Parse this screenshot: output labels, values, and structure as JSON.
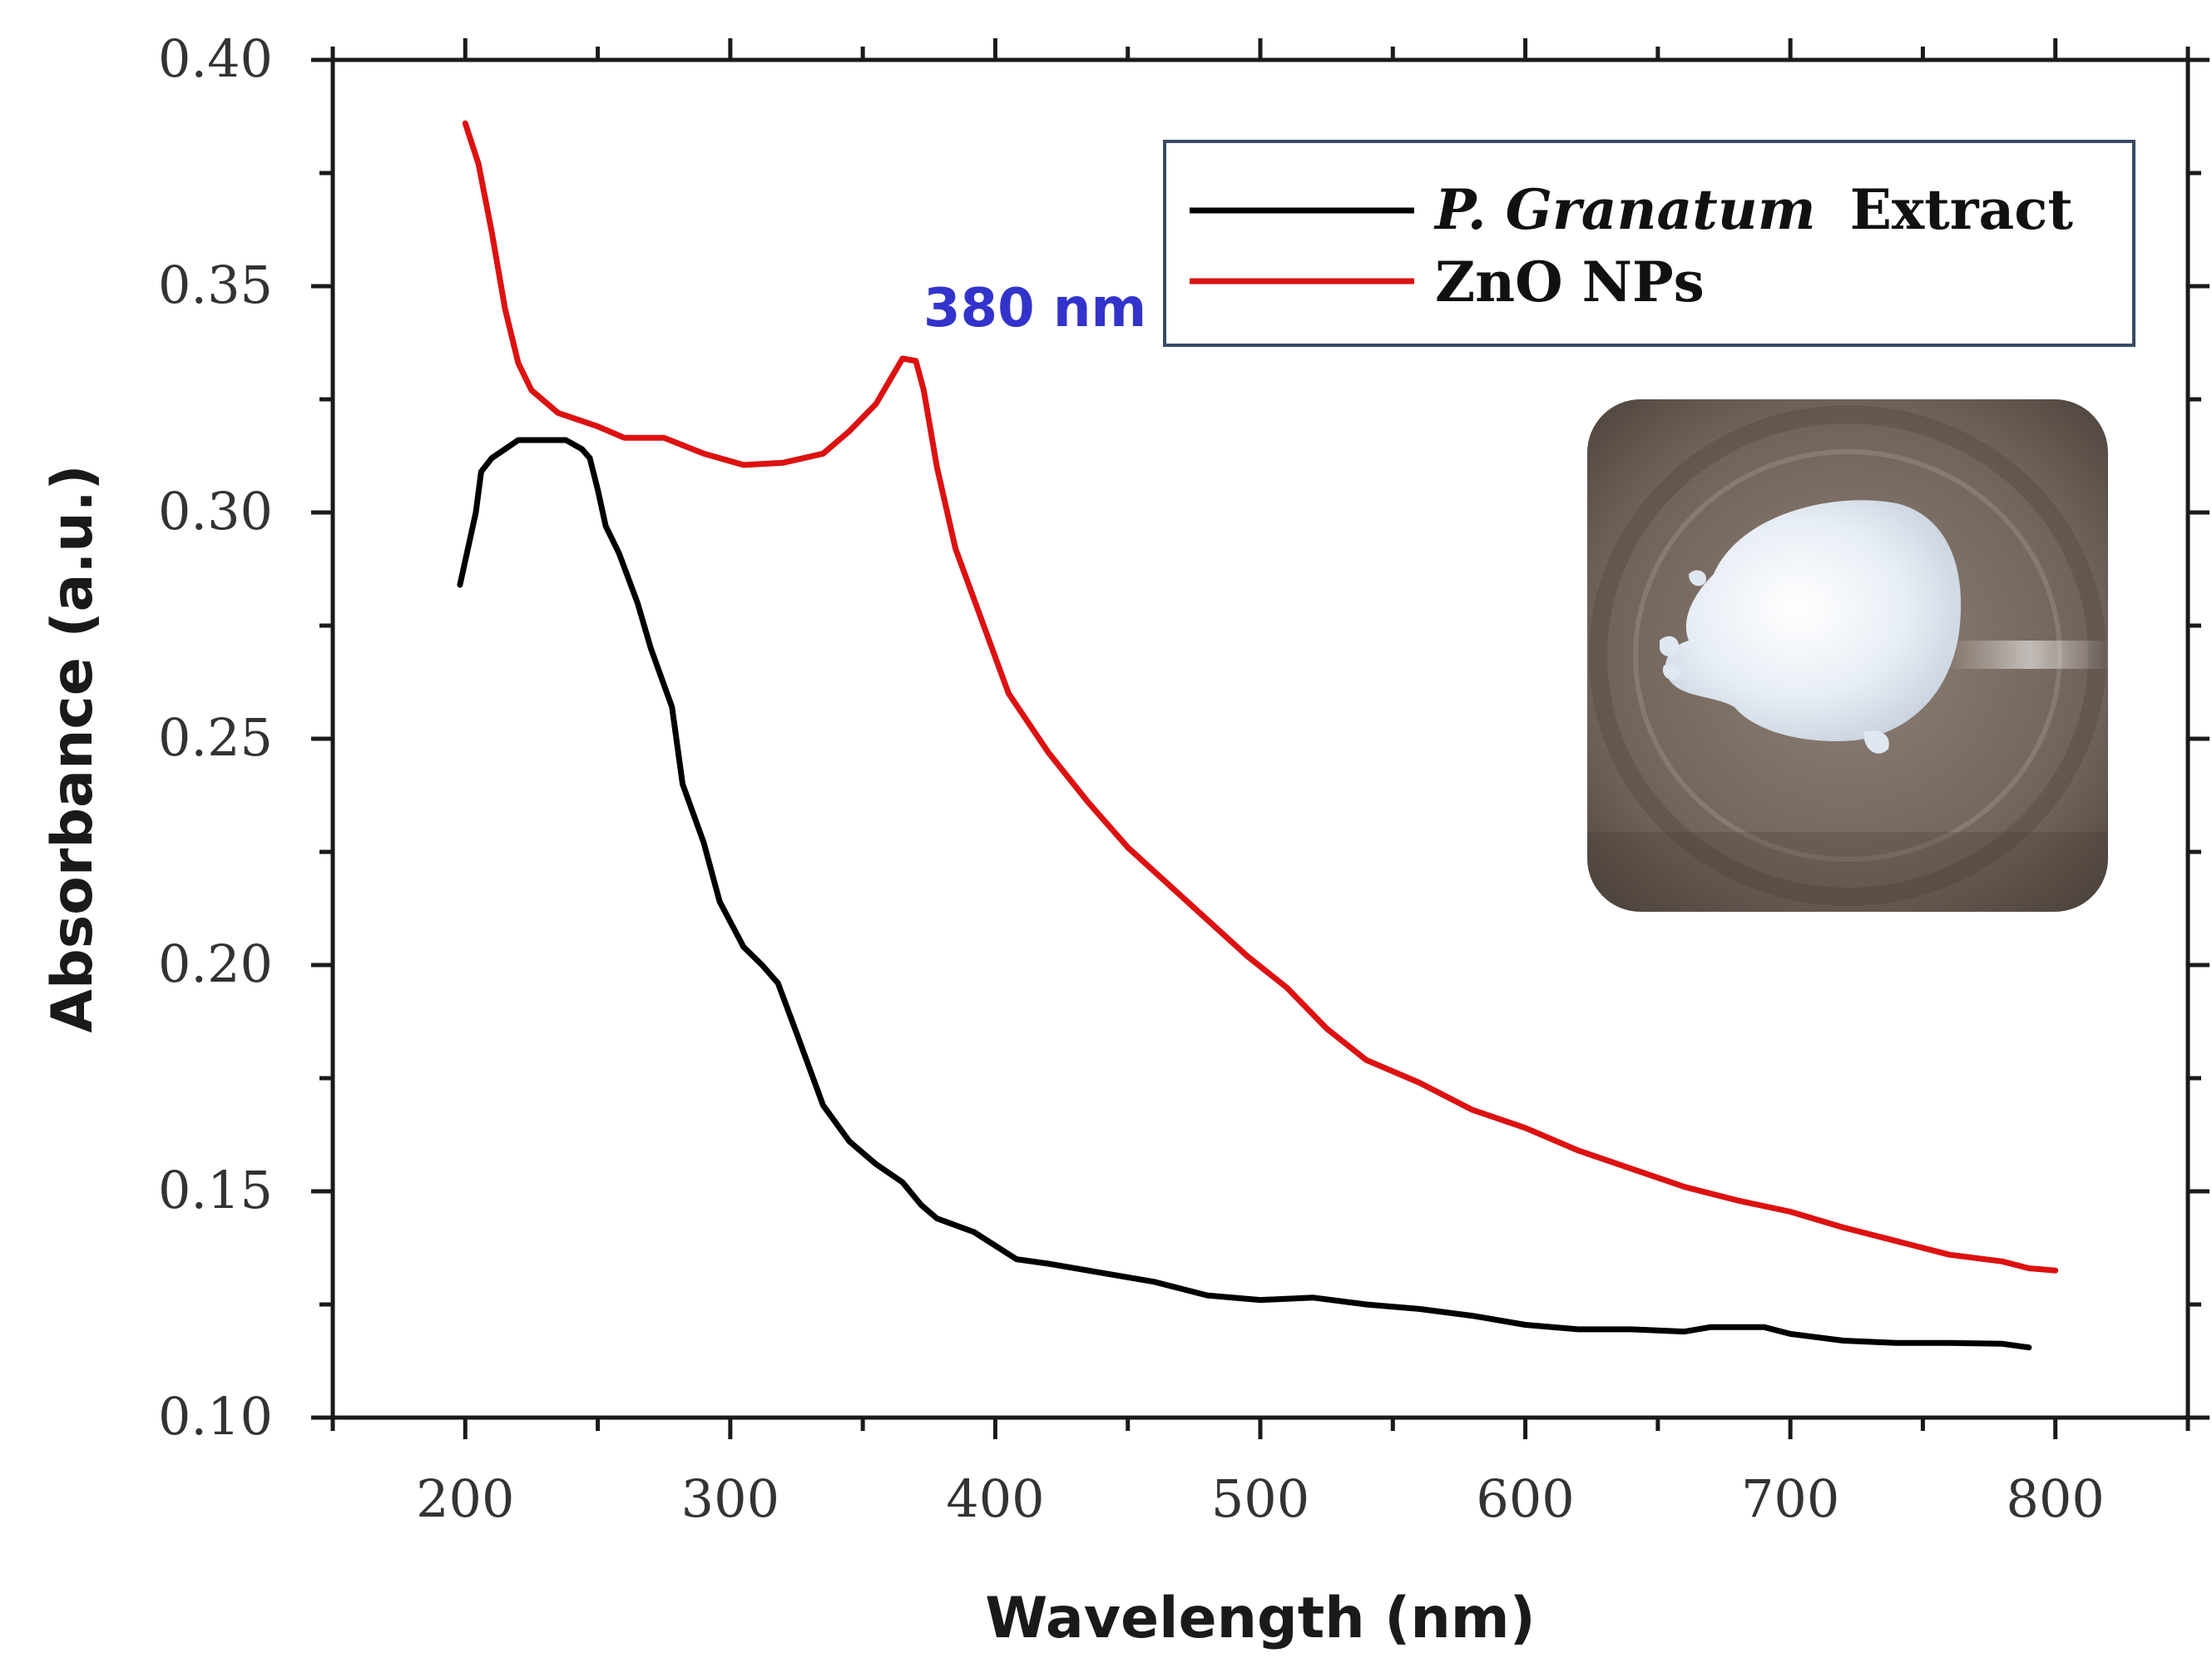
{
  "chart_data": {
    "type": "line",
    "xlabel": "Wavelength (nm)",
    "ylabel": "Absorbance (a.u.)",
    "xlim": [
      150,
      850
    ],
    "ylim": [
      0.1,
      0.4
    ],
    "x_ticks": [
      "200",
      "300",
      "400",
      "500",
      "600",
      "700",
      "800"
    ],
    "y_ticks": [
      "0.10",
      "0.15",
      "0.20",
      "0.25",
      "0.30",
      "0.35",
      "0.40"
    ],
    "legend_position": "top-right",
    "annotation": {
      "text": "380 nm",
      "color": "#3333cc"
    },
    "inset": "photo of white ZnO nanoparticle powder in a dish",
    "series": [
      {
        "name_italic": "P. Granatum",
        "name_rest": "Extract",
        "color": "#000000",
        "points": [
          [
            198,
            0.284
          ],
          [
            204,
            0.3
          ],
          [
            206,
            0.309
          ],
          [
            210,
            0.312
          ],
          [
            215,
            0.314
          ],
          [
            220,
            0.316
          ],
          [
            230,
            0.316
          ],
          [
            238,
            0.316
          ],
          [
            244,
            0.314
          ],
          [
            247,
            0.312
          ],
          [
            250,
            0.305
          ],
          [
            253,
            0.297
          ],
          [
            258,
            0.291
          ],
          [
            265,
            0.28
          ],
          [
            270,
            0.27
          ],
          [
            278,
            0.257
          ],
          [
            282,
            0.24
          ],
          [
            290,
            0.227
          ],
          [
            296,
            0.214
          ],
          [
            305,
            0.204
          ],
          [
            312,
            0.2
          ],
          [
            318,
            0.196
          ],
          [
            325,
            0.185
          ],
          [
            335,
            0.169
          ],
          [
            345,
            0.161
          ],
          [
            355,
            0.156
          ],
          [
            365,
            0.152
          ],
          [
            372,
            0.147
          ],
          [
            378,
            0.144
          ],
          [
            392,
            0.141
          ],
          [
            400,
            0.138
          ],
          [
            408,
            0.135
          ],
          [
            420,
            0.134
          ],
          [
            440,
            0.132
          ],
          [
            460,
            0.13
          ],
          [
            480,
            0.127
          ],
          [
            500,
            0.126
          ],
          [
            520,
            0.1265
          ],
          [
            540,
            0.125
          ],
          [
            560,
            0.124
          ],
          [
            580,
            0.1225
          ],
          [
            600,
            0.1205
          ],
          [
            620,
            0.1195
          ],
          [
            640,
            0.1195
          ],
          [
            660,
            0.119
          ],
          [
            670,
            0.12
          ],
          [
            690,
            0.12
          ],
          [
            700,
            0.1185
          ],
          [
            720,
            0.117
          ],
          [
            740,
            0.1165
          ],
          [
            760,
            0.1165
          ],
          [
            780,
            0.1163
          ],
          [
            790,
            0.1155
          ]
        ]
      },
      {
        "name": "ZnO NPs",
        "color": "#dd1111",
        "points": [
          [
            200,
            0.386
          ],
          [
            205,
            0.377
          ],
          [
            210,
            0.362
          ],
          [
            215,
            0.345
          ],
          [
            220,
            0.333
          ],
          [
            225,
            0.327
          ],
          [
            235,
            0.322
          ],
          [
            250,
            0.319
          ],
          [
            260,
            0.3165
          ],
          [
            275,
            0.3165
          ],
          [
            290,
            0.313
          ],
          [
            305,
            0.3105
          ],
          [
            320,
            0.311
          ],
          [
            335,
            0.313
          ],
          [
            345,
            0.318
          ],
          [
            355,
            0.324
          ],
          [
            360,
            0.329
          ],
          [
            365,
            0.334
          ],
          [
            370,
            0.3335
          ],
          [
            373,
            0.327
          ],
          [
            378,
            0.31
          ],
          [
            385,
            0.292
          ],
          [
            395,
            0.276
          ],
          [
            405,
            0.26
          ],
          [
            420,
            0.247
          ],
          [
            435,
            0.236
          ],
          [
            450,
            0.226
          ],
          [
            465,
            0.218
          ],
          [
            480,
            0.21
          ],
          [
            495,
            0.202
          ],
          [
            510,
            0.195
          ],
          [
            525,
            0.186
          ],
          [
            540,
            0.179
          ],
          [
            560,
            0.174
          ],
          [
            580,
            0.168
          ],
          [
            600,
            0.164
          ],
          [
            620,
            0.159
          ],
          [
            640,
            0.155
          ],
          [
            660,
            0.151
          ],
          [
            680,
            0.148
          ],
          [
            700,
            0.1455
          ],
          [
            720,
            0.142
          ],
          [
            740,
            0.139
          ],
          [
            760,
            0.136
          ],
          [
            780,
            0.1345
          ],
          [
            790,
            0.133
          ],
          [
            800,
            0.1325
          ]
        ]
      }
    ]
  }
}
